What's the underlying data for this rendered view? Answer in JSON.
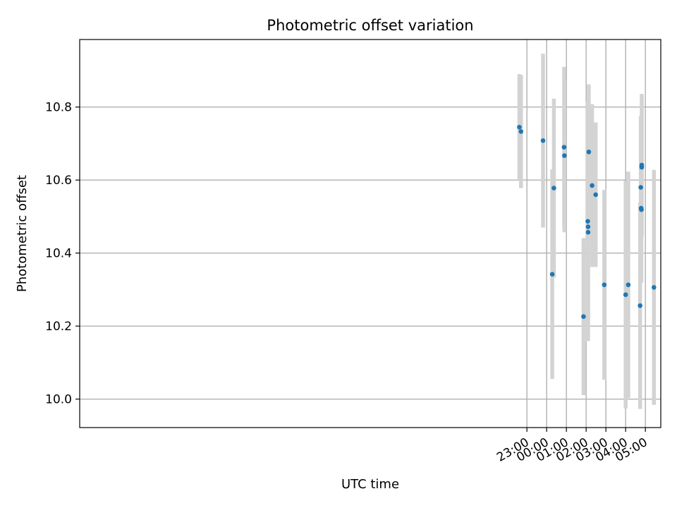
{
  "chart_data": {
    "type": "scatter",
    "title": "Photometric offset variation",
    "xlabel": "UTC time",
    "ylabel": "Photometric offset",
    "x_unit": "hours since 00:00 UTC",
    "xlim": [
      -23.65,
      5.78
    ],
    "ylim": [
      9.922,
      10.985
    ],
    "x_ticks": [
      {
        "value": -1.0,
        "label": "23:00"
      },
      {
        "value": 0.0,
        "label": "00:00"
      },
      {
        "value": 1.0,
        "label": "01:00"
      },
      {
        "value": 2.0,
        "label": "02:00"
      },
      {
        "value": 3.0,
        "label": "03:00"
      },
      {
        "value": 4.0,
        "label": "04:00"
      },
      {
        "value": 5.0,
        "label": "05:00"
      }
    ],
    "y_ticks": [
      {
        "value": 10.0,
        "label": "10.0"
      },
      {
        "value": 10.2,
        "label": "10.2"
      },
      {
        "value": 10.4,
        "label": "10.4"
      },
      {
        "value": 10.6,
        "label": "10.6"
      },
      {
        "value": 10.8,
        "label": "10.8"
      }
    ],
    "grid": true,
    "marker_color": "#1f77b4",
    "errorbar_color": "#d3d3d3",
    "points": [
      {
        "time": "22:37",
        "y": 10.745,
        "err": 0.145
      },
      {
        "time": "22:42",
        "y": 10.733,
        "err": 0.155
      },
      {
        "time": "23:49",
        "y": 10.708,
        "err": 0.238
      },
      {
        "time": "00:17",
        "y": 10.342,
        "err": 0.287
      },
      {
        "time": "00:22",
        "y": 10.578,
        "err": 0.245
      },
      {
        "time": "00:53",
        "y": 10.69,
        "err": 0.22
      },
      {
        "time": "00:54",
        "y": 10.667,
        "err": 0.21
      },
      {
        "time": "01:52",
        "y": 10.226,
        "err": 0.215
      },
      {
        "time": "02:05",
        "y": 10.487,
        "err": 0.328
      },
      {
        "time": "02:06",
        "y": 10.457,
        "err": 0.298
      },
      {
        "time": "02:06",
        "y": 10.472,
        "err": 0.255
      },
      {
        "time": "02:08",
        "y": 10.677,
        "err": 0.185
      },
      {
        "time": "02:18",
        "y": 10.585,
        "err": 0.223
      },
      {
        "time": "02:29",
        "y": 10.56,
        "err": 0.198
      },
      {
        "time": "02:55",
        "y": 10.313,
        "err": 0.26
      },
      {
        "time": "04:00",
        "y": 10.286,
        "err": 0.312
      },
      {
        "time": "04:08",
        "y": 10.313,
        "err": 0.31
      },
      {
        "time": "04:44",
        "y": 10.256,
        "err": 0.283
      },
      {
        "time": "04:46",
        "y": 10.58,
        "err": 0.195
      },
      {
        "time": "04:47",
        "y": 10.523,
        "err": 0.2
      },
      {
        "time": "04:48",
        "y": 10.519,
        "err": 0.2
      },
      {
        "time": "04:49",
        "y": 10.635,
        "err": 0.19
      },
      {
        "time": "04:49",
        "y": 10.641,
        "err": 0.195
      },
      {
        "time": "05:26",
        "y": 10.306,
        "err": 0.322
      }
    ]
  }
}
